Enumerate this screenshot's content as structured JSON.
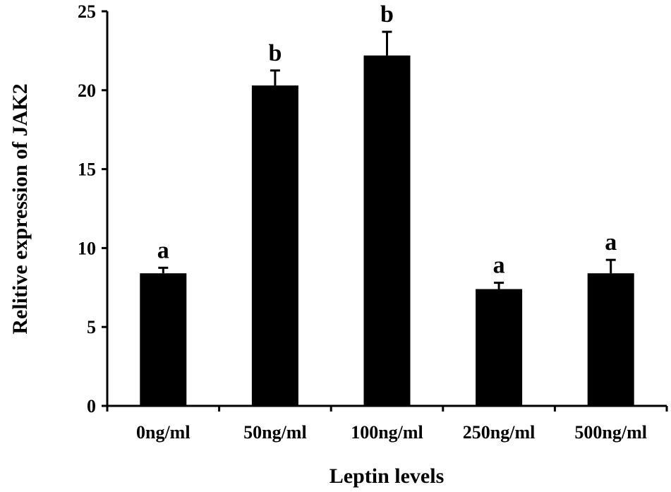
{
  "chart_data": {
    "type": "bar",
    "title": "",
    "xlabel": "Leptin levels",
    "ylabel": "Relitive expression  of  JAK2",
    "ylim": [
      0,
      25
    ],
    "yticks": [
      0,
      5,
      10,
      15,
      20,
      25
    ],
    "grid": false,
    "legend": "none",
    "categories": [
      "0ng/ml",
      "50ng/ml",
      "100ng/ml",
      "250ng/ml",
      "500ng/ml"
    ],
    "series": [
      {
        "values": [
          8.4,
          20.3,
          22.2,
          7.4,
          8.4
        ],
        "errors": [
          0.35,
          0.95,
          1.5,
          0.4,
          0.85
        ],
        "color": "#000000"
      }
    ],
    "significance_labels": [
      "a",
      "b",
      "b",
      "a",
      "a"
    ]
  }
}
